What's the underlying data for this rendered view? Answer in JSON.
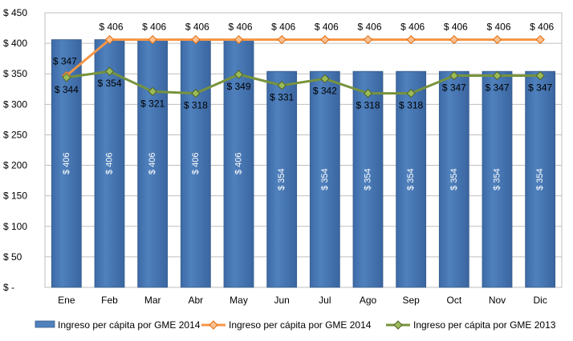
{
  "chart_data": {
    "type": "bar",
    "categories": [
      "Ene",
      "Feb",
      "Mar",
      "Abr",
      "May",
      "Jun",
      "Jul",
      "Ago",
      "Sep",
      "Oct",
      "Nov",
      "Dic"
    ],
    "ylim": [
      0,
      450
    ],
    "yticks": [
      0,
      50,
      100,
      150,
      200,
      250,
      300,
      350,
      400,
      450
    ],
    "ytick_labels": [
      "$ -",
      "$ 50",
      "$ 100",
      "$ 150",
      "$ 200",
      "$ 250",
      "$ 300",
      "$ 350",
      "$ 400",
      "$ 450"
    ],
    "grid": true,
    "legend_position": "bottom",
    "series": [
      {
        "name": "Ingreso per cápita por GME 2014",
        "kind": "bar",
        "color": "#4f81bd",
        "values": [
          406,
          406,
          406,
          406,
          406,
          354,
          354,
          354,
          354,
          354,
          354,
          354
        ],
        "labels": [
          "$ 406",
          "$ 406",
          "$ 406",
          "$ 406",
          "$ 406",
          "$ 354",
          "$ 354",
          "$ 354",
          "$ 354",
          "$ 354",
          "$ 354",
          "$ 354"
        ]
      },
      {
        "name": "Ingreso per cápita por GME 2014",
        "kind": "line",
        "color": "#f79646",
        "values": [
          347,
          406,
          406,
          406,
          406,
          406,
          406,
          406,
          406,
          406,
          406,
          406
        ],
        "labels": [
          "$ 347",
          "$ 406",
          "$ 406",
          "$ 406",
          "$ 406",
          "$ 406",
          "$ 406",
          "$ 406",
          "$ 406",
          "$ 406",
          "$ 406",
          "$ 406"
        ]
      },
      {
        "name": "Ingreso per cápita por GME 2013",
        "kind": "line",
        "color": "#77933c",
        "values": [
          344,
          354,
          321,
          318,
          349,
          331,
          342,
          318,
          318,
          347,
          347,
          347
        ],
        "labels": [
          "$ 344",
          "$ 354",
          "$ 321",
          "$ 318",
          "$ 349",
          "$ 331",
          "$ 342",
          "$ 318",
          "$ 318",
          "$ 347",
          "$ 347",
          "$ 347"
        ]
      }
    ]
  }
}
